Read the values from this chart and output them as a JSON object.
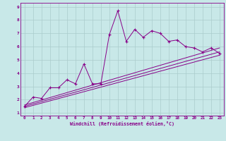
{
  "xlabel": "Windchill (Refroidissement éolien,°C)",
  "bg_color": "#c8e8e8",
  "line_color": "#880088",
  "grid_color": "#aacccc",
  "xlim": [
    -0.5,
    23.5
  ],
  "ylim": [
    0.8,
    9.3
  ],
  "x_ticks": [
    0,
    1,
    2,
    3,
    4,
    5,
    6,
    7,
    8,
    9,
    10,
    11,
    12,
    13,
    14,
    15,
    16,
    17,
    18,
    19,
    20,
    21,
    22,
    23
  ],
  "y_ticks": [
    1,
    2,
    3,
    4,
    5,
    6,
    7,
    8,
    9
  ],
  "line1_x": [
    0,
    1,
    2,
    3,
    4,
    5,
    6,
    7,
    8,
    9,
    10,
    11,
    12,
    13,
    14,
    15,
    16,
    17,
    18,
    19,
    20,
    21,
    22,
    23
  ],
  "line1_y": [
    1.5,
    2.2,
    2.1,
    2.9,
    2.9,
    3.5,
    3.2,
    4.7,
    3.2,
    3.2,
    6.9,
    8.7,
    6.4,
    7.3,
    6.7,
    7.2,
    7.0,
    6.4,
    6.5,
    6.0,
    5.9,
    5.6,
    5.9,
    5.5
  ],
  "line2_x": [
    0,
    23
  ],
  "line2_y": [
    1.6,
    5.9
  ],
  "line3_x": [
    0,
    23
  ],
  "line3_y": [
    1.5,
    5.6
  ],
  "line4_x": [
    0,
    23
  ],
  "line4_y": [
    1.4,
    5.35
  ]
}
